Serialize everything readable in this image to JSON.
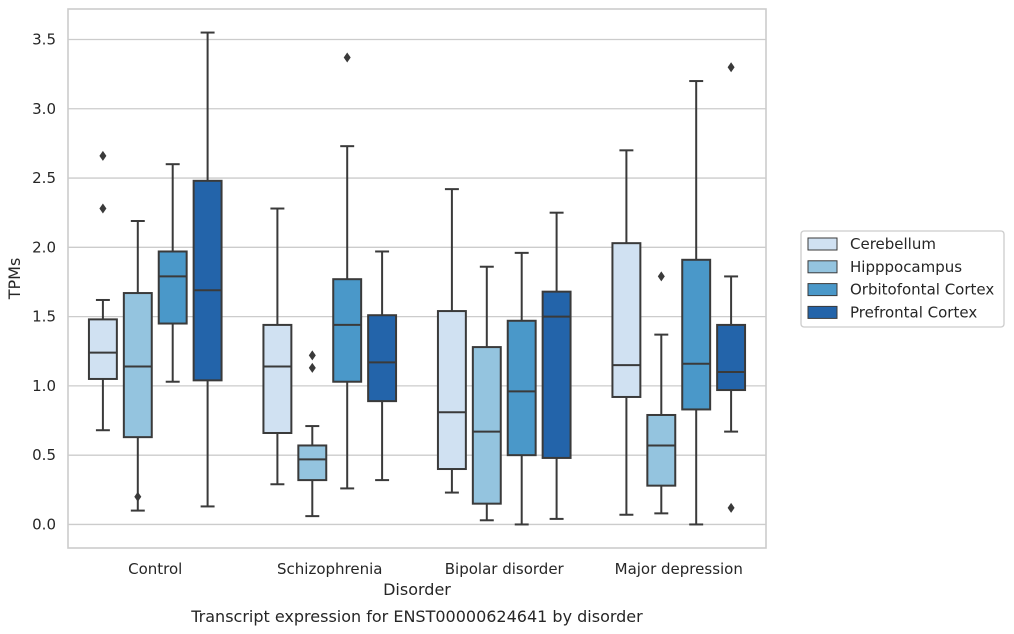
{
  "chart_data": {
    "type": "box",
    "title": "",
    "caption": "Transcript expression for ENST00000624641 by disorder",
    "xlabel": "Disorder",
    "ylabel": "TPMs",
    "ylim": [
      -0.17,
      3.72
    ],
    "yticks": [
      "0.0",
      "0.5",
      "1.0",
      "1.5",
      "2.0",
      "2.5",
      "3.0",
      "3.5"
    ],
    "categories": [
      "Control",
      "Schizophrenia",
      "Bipolar disorder",
      "Major depression"
    ],
    "grid": "horizontal",
    "legend_position": "right",
    "series": [
      {
        "name": "Cerebellum",
        "color": "#d0e1f2",
        "boxes": [
          {
            "whislo": 0.68,
            "q1": 1.05,
            "med": 1.24,
            "q3": 1.48,
            "whishi": 1.62,
            "fliers": [
              2.28,
              2.66
            ]
          },
          {
            "whislo": 0.29,
            "q1": 0.66,
            "med": 1.14,
            "q3": 1.44,
            "whishi": 2.28,
            "fliers": []
          },
          {
            "whislo": 0.23,
            "q1": 0.4,
            "med": 0.81,
            "q3": 1.54,
            "whishi": 2.42,
            "fliers": []
          },
          {
            "whislo": 0.07,
            "q1": 0.92,
            "med": 1.15,
            "q3": 2.03,
            "whishi": 2.7,
            "fliers": []
          }
        ]
      },
      {
        "name": "Hipppocampus",
        "color": "#94c4df",
        "boxes": [
          {
            "whislo": 0.1,
            "q1": 0.63,
            "med": 1.14,
            "q3": 1.67,
            "whishi": 2.19,
            "fliers": [
              0.2
            ]
          },
          {
            "whislo": 0.06,
            "q1": 0.32,
            "med": 0.47,
            "q3": 0.57,
            "whishi": 0.71,
            "fliers": [
              1.13,
              1.22
            ]
          },
          {
            "whislo": 0.03,
            "q1": 0.15,
            "med": 0.67,
            "q3": 1.28,
            "whishi": 1.86,
            "fliers": []
          },
          {
            "whislo": 0.08,
            "q1": 0.28,
            "med": 0.57,
            "q3": 0.79,
            "whishi": 1.37,
            "fliers": [
              1.79
            ]
          }
        ]
      },
      {
        "name": "Orbitofontal Cortex",
        "color": "#4a98c9",
        "boxes": [
          {
            "whislo": 1.03,
            "q1": 1.45,
            "med": 1.79,
            "q3": 1.97,
            "whishi": 2.6,
            "fliers": []
          },
          {
            "whislo": 0.26,
            "q1": 1.03,
            "med": 1.44,
            "q3": 1.77,
            "whishi": 2.73,
            "fliers": [
              3.37
            ]
          },
          {
            "whislo": 0.0,
            "q1": 0.5,
            "med": 0.96,
            "q3": 1.47,
            "whishi": 1.96,
            "fliers": []
          },
          {
            "whislo": 0.0,
            "q1": 0.83,
            "med": 1.16,
            "q3": 1.91,
            "whishi": 3.2,
            "fliers": []
          }
        ]
      },
      {
        "name": "Prefrontal Cortex",
        "color": "#2364aa",
        "boxes": [
          {
            "whislo": 0.13,
            "q1": 1.04,
            "med": 1.69,
            "q3": 2.48,
            "whishi": 3.55,
            "fliers": []
          },
          {
            "whislo": 0.32,
            "q1": 0.89,
            "med": 1.17,
            "q3": 1.51,
            "whishi": 1.97,
            "fliers": []
          },
          {
            "whislo": 0.04,
            "q1": 0.48,
            "med": 1.5,
            "q3": 1.68,
            "whishi": 2.25,
            "fliers": []
          },
          {
            "whislo": 0.67,
            "q1": 0.97,
            "med": 1.1,
            "q3": 1.44,
            "whishi": 1.79,
            "fliers": [
              0.12,
              3.3
            ]
          }
        ]
      }
    ]
  }
}
